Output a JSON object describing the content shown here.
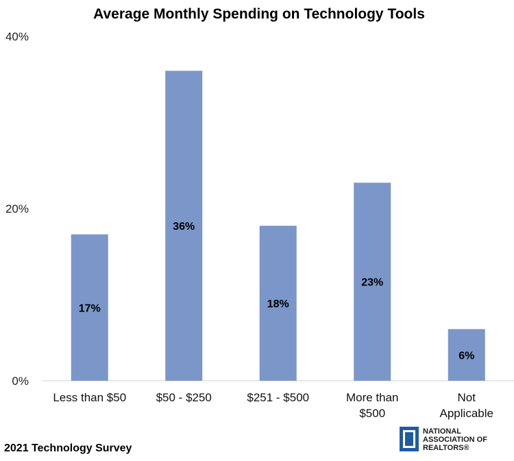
{
  "chart_data": {
    "type": "bar",
    "title": "Average Monthly Spending on Technology Tools",
    "categories": [
      [
        "Less than $50"
      ],
      [
        "$50 - $250"
      ],
      [
        "$251 - $500"
      ],
      [
        "More than",
        "$500"
      ],
      [
        "Not",
        "Applicable"
      ]
    ],
    "values": [
      17,
      36,
      18,
      23,
      6
    ],
    "data_labels": [
      "17%",
      "36%",
      "18%",
      "23%",
      "6%"
    ],
    "yticks": [
      0,
      20,
      40
    ],
    "ytick_labels": [
      "0%",
      "20%",
      "40%"
    ],
    "ylim": [
      0,
      40
    ],
    "xlabel": "",
    "ylabel": "",
    "bar_color": "#7b96c8",
    "grid": false,
    "legend": "none"
  },
  "footer": "2021 Technology Survey",
  "logo": {
    "lines": [
      "NATIONAL",
      "ASSOCIATION OF",
      "REALTORS®"
    ],
    "color": "#1f5aa6"
  }
}
